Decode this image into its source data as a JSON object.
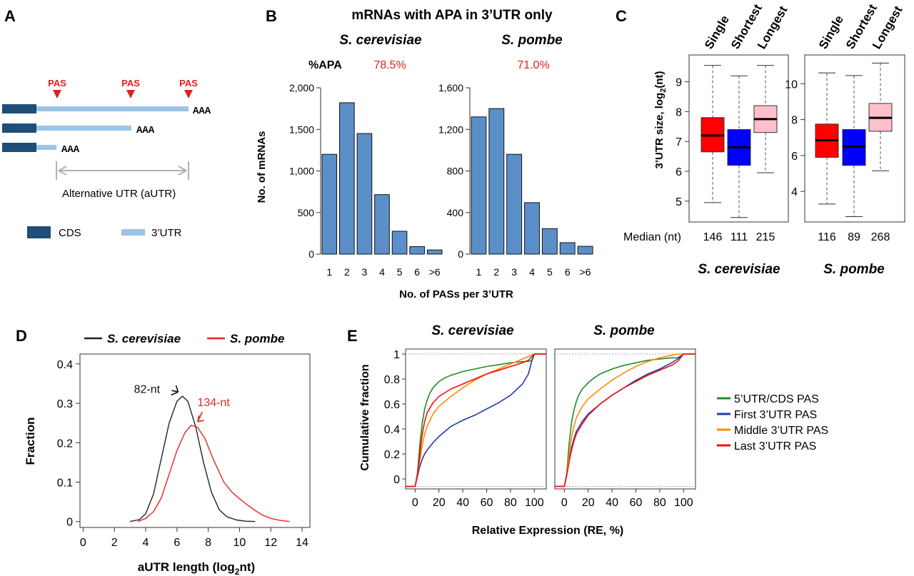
{
  "panel_labels": [
    "A",
    "B",
    "C",
    "D",
    "E"
  ],
  "panel_a": {
    "pas_label": "PAS",
    "polya": "AAA",
    "autr_label": "Alternative UTR (aUTR)",
    "legend": [
      {
        "label": "CDS",
        "color": "#1f4e79"
      },
      {
        "label": "3’UTR",
        "color": "#9dc3e6"
      }
    ]
  },
  "panel_b": {
    "title": "mRNAs with APA in 3’UTR only",
    "apa_label": "%APA",
    "ylabel": "No. of mRNAs",
    "xlabel": "No. of PASs per 3’UTR"
  },
  "panel_c": {
    "ylabel_main": "3’UTR size, log",
    "ylabel_sub": "2",
    "ylabel_tail": "(nt)",
    "median_label": "Median (nt)",
    "categories": [
      "Single",
      "Shortest",
      "Longest"
    ],
    "colors": [
      "#ff0000",
      "#0000ff",
      "#ffc0cb"
    ]
  },
  "panel_d": {
    "xlabel_main": "aUTR length (log",
    "xlabel_sub": "2",
    "xlabel_tail": "nt)",
    "ylabel": "Fraction"
  },
  "panel_e": {
    "ylabel": "Cumulative fraction",
    "xlabel": "Relative Expression (RE, %)"
  },
  "chart_data": [
    {
      "id": "B-cer",
      "type": "bar",
      "title": "S. cerevisiae",
      "annotation": "78.5%",
      "categories": [
        "1",
        "2",
        "3",
        "4",
        "5",
        "6",
        ">6"
      ],
      "values": [
        1200,
        1820,
        1450,
        715,
        275,
        90,
        50
      ],
      "ylim": [
        0,
        2000
      ],
      "yticks": [
        0,
        500,
        1000,
        1500,
        2000
      ],
      "ytick_labels": [
        "0",
        "500",
        "1,000",
        "1,500",
        "2,000"
      ]
    },
    {
      "id": "B-pom",
      "type": "bar",
      "title": "S. pombe",
      "annotation": "71.0%",
      "categories": [
        "1",
        "2",
        "3",
        "4",
        "5",
        "6",
        ">6"
      ],
      "values": [
        1320,
        1400,
        960,
        495,
        245,
        110,
        75
      ],
      "ylim": [
        0,
        1600
      ],
      "yticks": [
        0,
        400,
        800,
        1200,
        1600
      ],
      "ytick_labels": [
        "0",
        "400",
        "800",
        "1,200",
        "1,600"
      ]
    },
    {
      "id": "C-cer",
      "type": "box",
      "title": "S. cerevisiae",
      "categories": [
        "Single",
        "Shortest",
        "Longest"
      ],
      "boxes": [
        {
          "min": 4.95,
          "q1": 6.65,
          "median": 7.2,
          "q3": 7.8,
          "max": 9.55
        },
        {
          "min": 4.45,
          "q1": 6.2,
          "median": 6.8,
          "q3": 7.4,
          "max": 9.2
        },
        {
          "min": 5.95,
          "q1": 7.3,
          "median": 7.75,
          "q3": 8.2,
          "max": 9.55
        }
      ],
      "medians_nt": [
        "146",
        "111",
        "215"
      ],
      "ylim": [
        4.3,
        9.9
      ],
      "yticks": [
        5,
        6,
        7,
        8,
        9
      ]
    },
    {
      "id": "C-pom",
      "type": "box",
      "title": "S. pombe",
      "categories": [
        "Single",
        "Shortest",
        "Longest"
      ],
      "boxes": [
        {
          "min": 3.3,
          "q1": 5.9,
          "median": 6.85,
          "q3": 7.75,
          "max": 10.6
        },
        {
          "min": 2.6,
          "q1": 5.45,
          "median": 6.5,
          "q3": 7.45,
          "max": 10.45
        },
        {
          "min": 5.15,
          "q1": 7.35,
          "median": 8.1,
          "q3": 8.9,
          "max": 11.15
        }
      ],
      "medians_nt": [
        "116",
        "89",
        "268"
      ],
      "ylim": [
        2.3,
        11.6
      ],
      "yticks": [
        4,
        6,
        8,
        10
      ]
    },
    {
      "id": "D",
      "type": "line",
      "xlim": [
        -0.2,
        14.5
      ],
      "ylim": [
        -0.015,
        0.425
      ],
      "xticks": [
        0,
        2,
        4,
        6,
        8,
        10,
        12,
        14
      ],
      "yticks": [
        0,
        0.1,
        0.2,
        0.3,
        0.4
      ],
      "series": [
        {
          "name": "S. cerevisiae",
          "color": "#222222",
          "x": [
            3.0,
            3.6,
            4.0,
            4.5,
            5.0,
            5.5,
            6.0,
            6.35,
            6.7,
            7.2,
            7.7,
            8.2,
            8.7,
            9.2,
            9.8,
            10.4,
            11.0
          ],
          "y": [
            0.0,
            0.005,
            0.02,
            0.07,
            0.16,
            0.25,
            0.305,
            0.318,
            0.305,
            0.24,
            0.15,
            0.075,
            0.03,
            0.012,
            0.004,
            0.001,
            0.0
          ]
        },
        {
          "name": "S. pombe",
          "color": "#ee2222",
          "x": [
            3.5,
            4.0,
            4.5,
            5.0,
            5.5,
            6.0,
            6.5,
            6.9,
            7.3,
            7.8,
            8.3,
            9.0,
            9.5,
            10.0,
            10.5,
            11.0,
            11.5,
            12.0,
            12.6,
            13.2
          ],
          "y": [
            0.0,
            0.008,
            0.025,
            0.06,
            0.12,
            0.18,
            0.225,
            0.244,
            0.24,
            0.21,
            0.16,
            0.1,
            0.075,
            0.058,
            0.042,
            0.028,
            0.016,
            0.008,
            0.003,
            0.0
          ]
        }
      ],
      "annotations": [
        {
          "text": "82-nt",
          "x": 5.9,
          "y": 0.33,
          "color": "#111111"
        },
        {
          "text": "134-nt",
          "x": 7.9,
          "y": 0.282,
          "color": "#ee2222"
        }
      ]
    },
    {
      "id": "E-cer",
      "type": "line",
      "title": "S. cerevisiae",
      "xlim": [
        -8,
        110
      ],
      "ylim": [
        -0.08,
        1.04
      ],
      "xticks": [
        0,
        20,
        40,
        60,
        80,
        100
      ],
      "yticks": [
        0,
        0.2,
        0.4,
        0.6,
        0.8,
        1
      ],
      "ytick_labels": [
        "0",
        "0.2",
        "0.4",
        "0.6",
        "0.8",
        "1"
      ],
      "series": [
        {
          "name": "5’UTR/CDS PAS",
          "color": "#228b22",
          "x": [
            -8,
            0,
            2,
            4,
            6,
            8,
            10,
            12,
            15,
            20,
            25,
            30,
            40,
            50,
            60,
            70,
            80,
            90,
            95,
            98,
            100,
            110
          ],
          "y": [
            -0.06,
            -0.06,
            0.05,
            0.28,
            0.45,
            0.56,
            0.63,
            0.68,
            0.73,
            0.78,
            0.81,
            0.83,
            0.86,
            0.88,
            0.9,
            0.915,
            0.93,
            0.94,
            0.94,
            0.95,
            1.0,
            1.0
          ]
        },
        {
          "name": "First 3’UTR PAS",
          "color": "#1f3caa",
          "x": [
            -8,
            0,
            2,
            4,
            6,
            8,
            10,
            15,
            20,
            30,
            40,
            50,
            60,
            70,
            80,
            90,
            95,
            98,
            100,
            110
          ],
          "y": [
            -0.06,
            -0.06,
            0.02,
            0.1,
            0.16,
            0.2,
            0.23,
            0.29,
            0.34,
            0.42,
            0.47,
            0.51,
            0.56,
            0.61,
            0.67,
            0.76,
            0.84,
            0.95,
            1.0,
            1.0
          ]
        },
        {
          "name": "Middle 3’UTR PAS",
          "color": "#ff8c00",
          "x": [
            -8,
            0,
            2,
            4,
            6,
            8,
            10,
            15,
            20,
            30,
            40,
            50,
            60,
            70,
            80,
            90,
            95,
            100,
            110
          ],
          "y": [
            -0.06,
            -0.06,
            0.03,
            0.15,
            0.27,
            0.36,
            0.42,
            0.52,
            0.58,
            0.66,
            0.73,
            0.79,
            0.84,
            0.88,
            0.92,
            0.96,
            0.98,
            1.0,
            1.0
          ]
        },
        {
          "name": "Last 3’UTR PAS",
          "color": "#ee1111",
          "x": [
            -8,
            0,
            2,
            4,
            6,
            8,
            10,
            15,
            20,
            30,
            40,
            50,
            60,
            70,
            80,
            90,
            95,
            100,
            110
          ],
          "y": [
            -0.06,
            -0.06,
            0.04,
            0.2,
            0.36,
            0.46,
            0.53,
            0.61,
            0.66,
            0.72,
            0.76,
            0.8,
            0.84,
            0.87,
            0.9,
            0.93,
            0.95,
            1.0,
            1.0
          ]
        }
      ]
    },
    {
      "id": "E-pom",
      "type": "line",
      "title": "S. pombe",
      "xlim": [
        -8,
        110
      ],
      "ylim": [
        -0.08,
        1.04
      ],
      "xticks": [
        0,
        20,
        40,
        60,
        80,
        100
      ],
      "series": [
        {
          "name": "5’UTR/CDS PAS",
          "color": "#228b22",
          "x": [
            -8,
            0,
            2,
            4,
            6,
            8,
            10,
            12,
            15,
            20,
            25,
            30,
            40,
            50,
            60,
            70,
            80,
            90,
            95,
            100,
            110
          ],
          "y": [
            -0.06,
            -0.06,
            0.05,
            0.28,
            0.45,
            0.55,
            0.62,
            0.67,
            0.72,
            0.77,
            0.81,
            0.84,
            0.88,
            0.91,
            0.93,
            0.95,
            0.96,
            0.97,
            0.97,
            1.0,
            1.0
          ]
        },
        {
          "name": "First 3’UTR PAS",
          "color": "#1f3caa",
          "x": [
            -8,
            0,
            2,
            4,
            6,
            8,
            10,
            15,
            20,
            30,
            40,
            50,
            60,
            70,
            80,
            90,
            95,
            100,
            110
          ],
          "y": [
            -0.06,
            -0.06,
            0.03,
            0.15,
            0.25,
            0.32,
            0.38,
            0.46,
            0.52,
            0.6,
            0.67,
            0.73,
            0.79,
            0.84,
            0.88,
            0.93,
            0.96,
            1.0,
            1.0
          ]
        },
        {
          "name": "Middle 3’UTR PAS",
          "color": "#ff8c00",
          "x": [
            -8,
            0,
            2,
            4,
            6,
            8,
            10,
            15,
            20,
            30,
            40,
            50,
            60,
            70,
            80,
            90,
            95,
            100,
            110
          ],
          "y": [
            -0.06,
            -0.06,
            0.04,
            0.2,
            0.33,
            0.42,
            0.49,
            0.58,
            0.64,
            0.72,
            0.79,
            0.85,
            0.9,
            0.94,
            0.97,
            0.99,
            1.0,
            1.0,
            1.0
          ]
        },
        {
          "name": "Last 3’UTR PAS",
          "color": "#ee1111",
          "x": [
            -8,
            0,
            2,
            4,
            6,
            8,
            10,
            15,
            20,
            30,
            40,
            50,
            60,
            70,
            80,
            90,
            95,
            100,
            110
          ],
          "y": [
            -0.06,
            -0.06,
            0.03,
            0.14,
            0.23,
            0.3,
            0.36,
            0.44,
            0.51,
            0.6,
            0.67,
            0.73,
            0.78,
            0.83,
            0.87,
            0.91,
            0.94,
            1.0,
            1.0
          ]
        }
      ]
    }
  ]
}
